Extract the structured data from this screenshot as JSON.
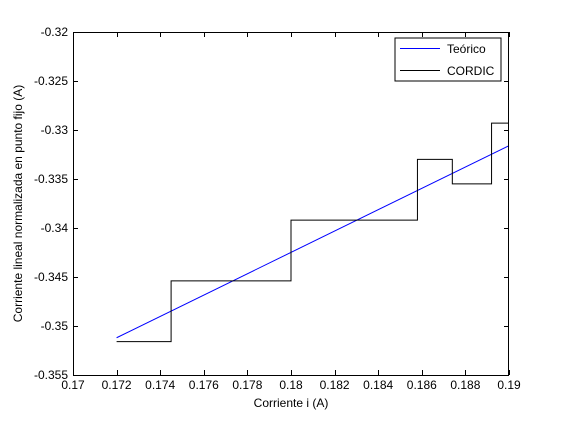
{
  "chart_data": {
    "type": "line",
    "title": "",
    "xlabel": "Corriente i (A)",
    "ylabel": "Corriente lineal normalizada en punto fijo (A)",
    "xlim": [
      0.17,
      0.19
    ],
    "ylim": [
      -0.355,
      -0.32
    ],
    "x_ticks": [
      0.17,
      0.172,
      0.174,
      0.176,
      0.178,
      0.18,
      0.182,
      0.184,
      0.186,
      0.188,
      0.19
    ],
    "x_tick_labels": [
      "0.17",
      "0.172",
      "0.174",
      "0.176",
      "0.178",
      "0.18",
      "0.182",
      "0.184",
      "0.186",
      "0.188",
      "0.19"
    ],
    "y_ticks": [
      -0.32,
      -0.325,
      -0.33,
      -0.335,
      -0.34,
      -0.345,
      -0.35,
      -0.355
    ],
    "y_tick_labels": [
      "-0.32",
      "-0.325",
      "-0.33",
      "-0.335",
      "-0.34",
      "-0.345",
      "-0.35",
      "-0.355"
    ],
    "grid": false,
    "legend_position": "top-right",
    "series": [
      {
        "name": "Teórico",
        "color": "#0000ff",
        "style": "line",
        "x": [
          0.172,
          0.19
        ],
        "y": [
          -0.3512,
          -0.3316
        ]
      },
      {
        "name": "CORDIC",
        "color": "#000000",
        "style": "step",
        "x": [
          0.172,
          0.1745,
          0.1745,
          0.18,
          0.18,
          0.1858,
          0.1858,
          0.1874,
          0.1874,
          0.1892,
          0.1892,
          0.19
        ],
        "y": [
          -0.3516,
          -0.3516,
          -0.3454,
          -0.3454,
          -0.3392,
          -0.3392,
          -0.333,
          -0.333,
          -0.3355,
          -0.3355,
          -0.3293,
          -0.3293
        ]
      }
    ]
  }
}
